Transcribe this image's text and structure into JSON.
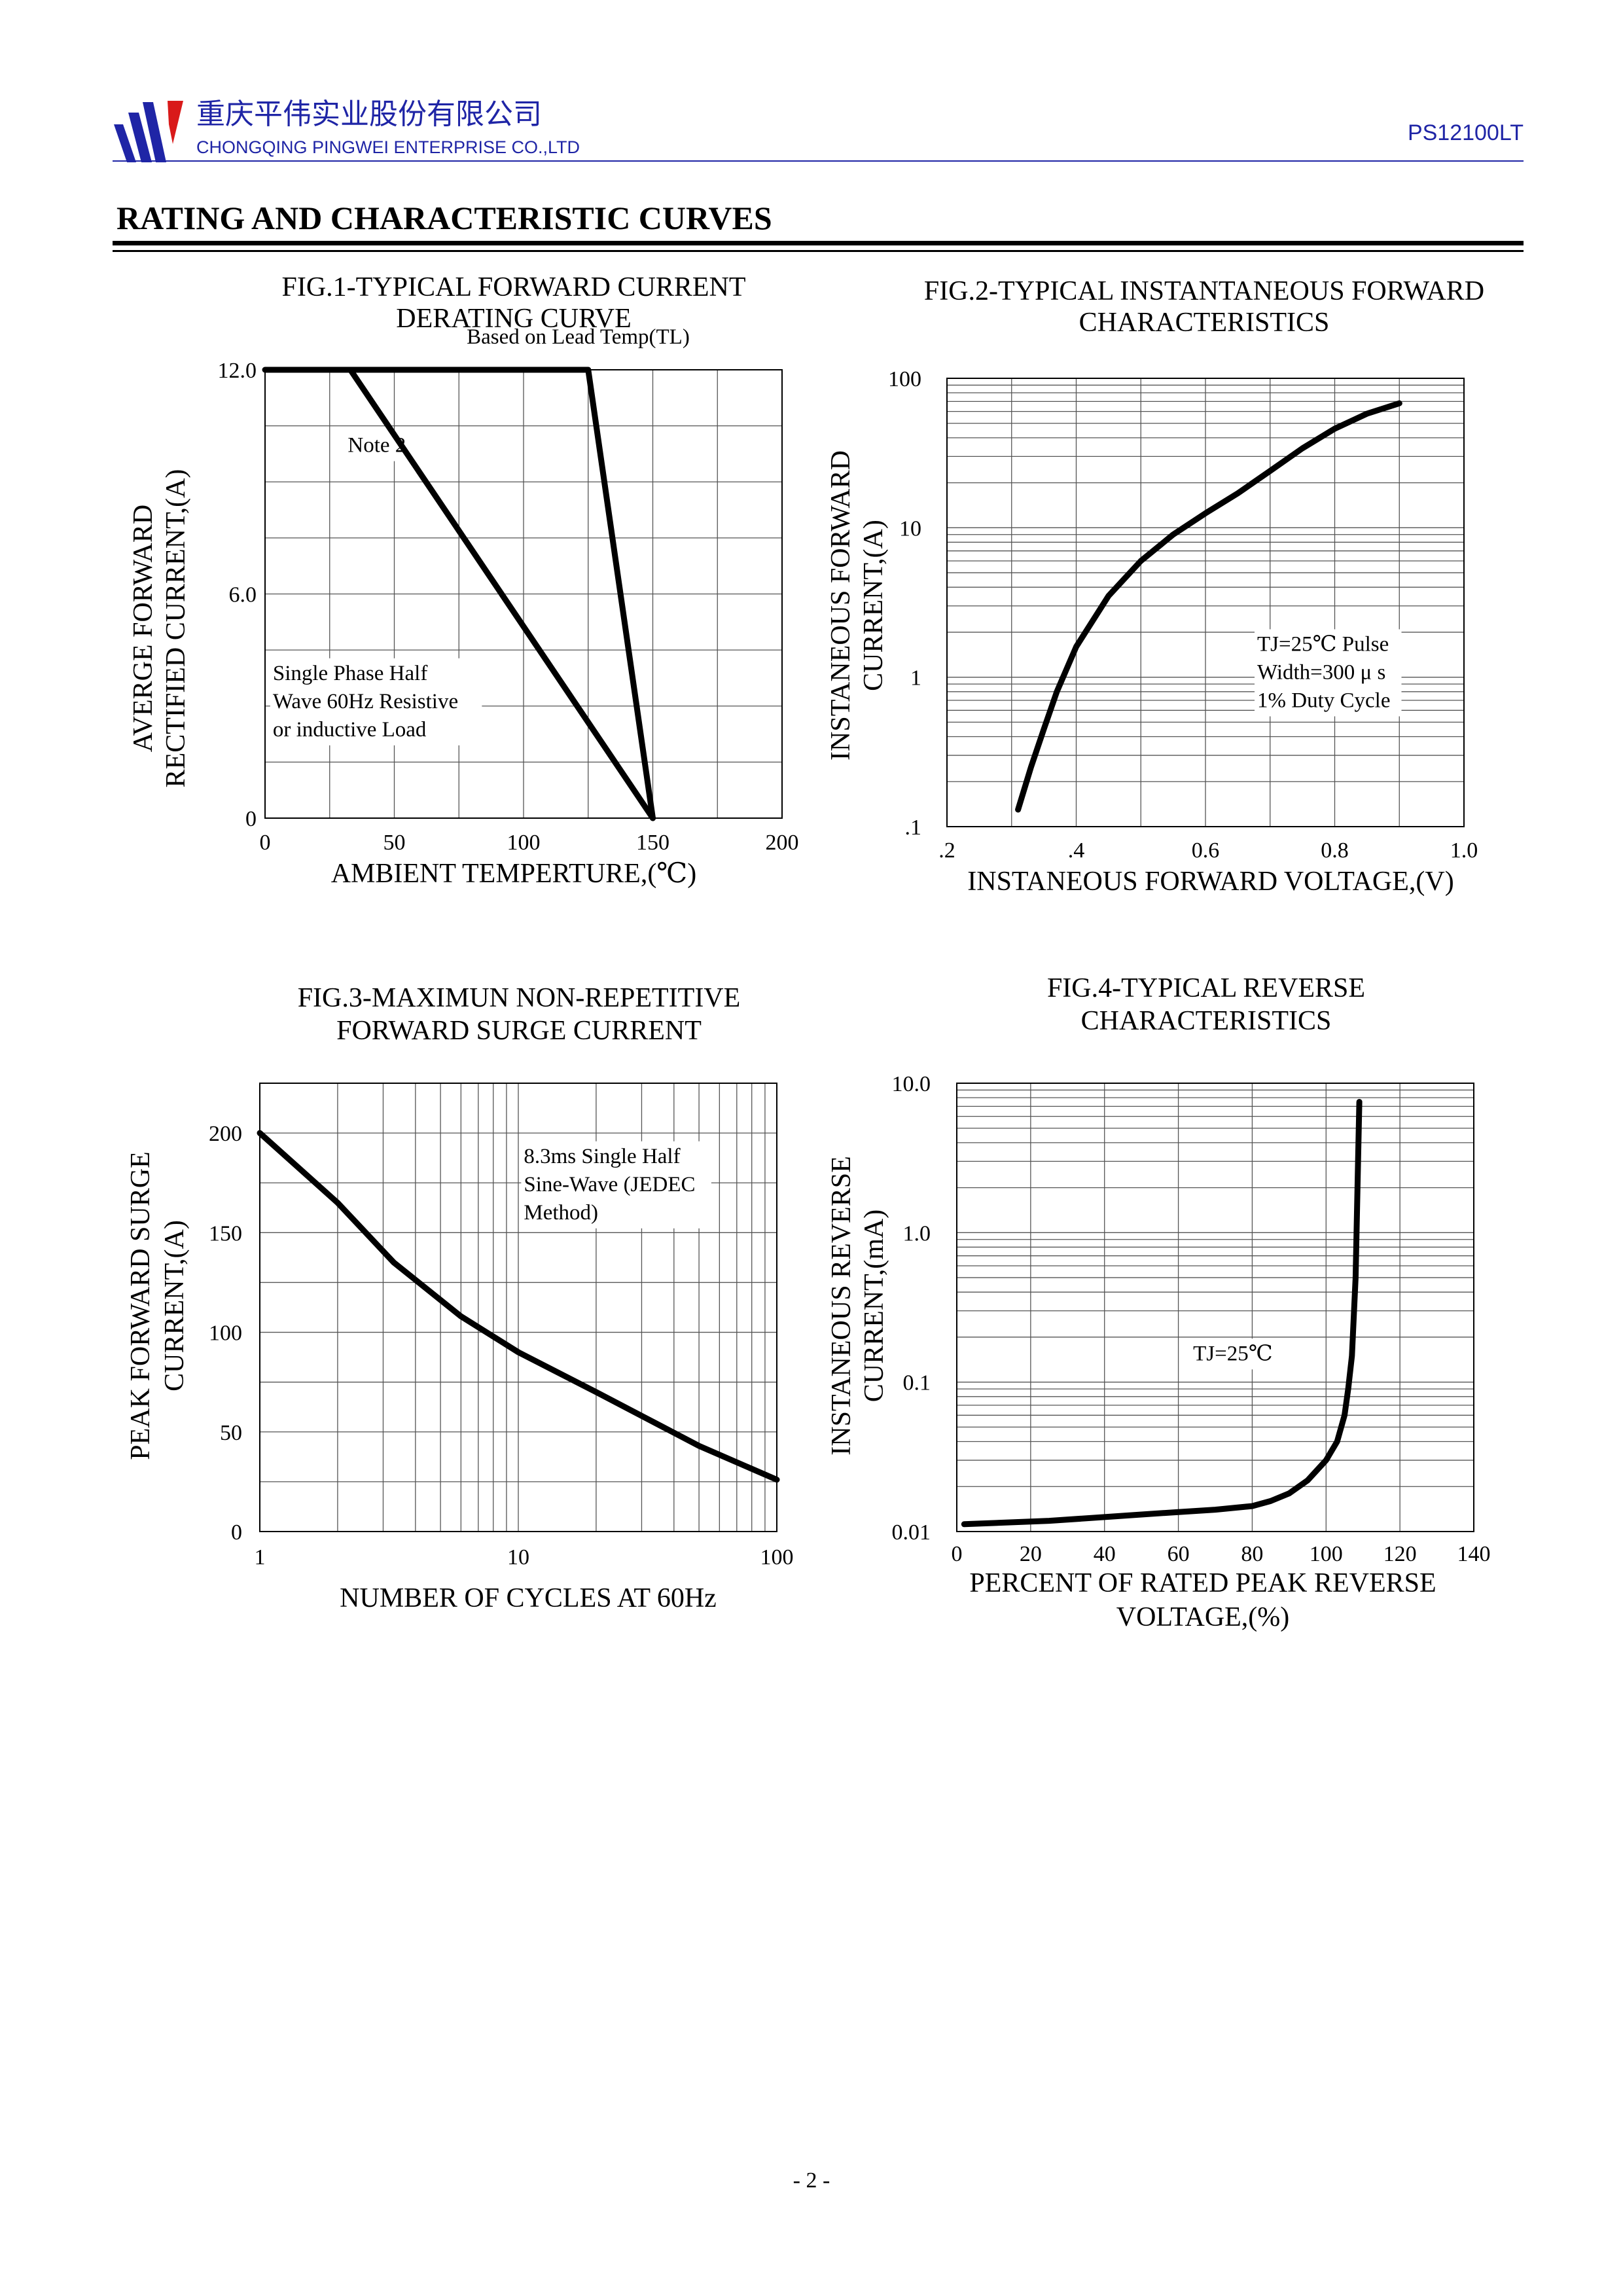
{
  "header": {
    "company_cn": "重庆平伟实业股份有限公司",
    "company_en": "CHONGQING PINGWEI ENTERPRISE CO.,LTD",
    "part_number": "PS12100LT",
    "brand_color": "#1f25a6"
  },
  "section_title": "RATING AND CHARACTERISTIC CURVES",
  "page_number": "- 2 -",
  "chart_data": [
    {
      "id": "fig1",
      "type": "line",
      "title": [
        "FIG.1-TYPICAL FORWARD CURRENT",
        "DERATING CURVE"
      ],
      "xlabel": "AMBIENT TEMPERTURE,(℃)",
      "ylabel": [
        "AVERGE FORWARD",
        "RECTIFIED CURRENT,(A)"
      ],
      "xlim": [
        0,
        200
      ],
      "ylim": [
        0,
        12
      ],
      "x_ticks": [
        {
          "v": 0,
          "label": "0"
        },
        {
          "v": 50,
          "label": "50"
        },
        {
          "v": 100,
          "label": "100"
        },
        {
          "v": 150,
          "label": "150"
        },
        {
          "v": 200,
          "label": "200"
        }
      ],
      "y_ticks": [
        {
          "v": 0,
          "label": "0"
        },
        {
          "v": 6,
          "label": "6.0"
        },
        {
          "v": 12,
          "label": "12.0"
        }
      ],
      "series": [
        {
          "name": "Based on Lead Temp(TL)",
          "x": [
            0,
            125,
            150
          ],
          "y": [
            12,
            12,
            0
          ]
        },
        {
          "name": "Note 2",
          "x": [
            33,
            150
          ],
          "y": [
            12,
            0
          ]
        }
      ],
      "annotations": [
        {
          "lines": [
            "Based on Lead Temp(TL)"
          ],
          "x": 78,
          "y": 12.7
        },
        {
          "lines": [
            "Note 2"
          ],
          "x": 32,
          "y": 9.8
        },
        {
          "lines": [
            "Single Phase Half",
            "Wave 60Hz Resistive",
            "or inductive Load"
          ],
          "x": 3,
          "y": 3.7
        }
      ]
    },
    {
      "id": "fig2",
      "type": "line",
      "title": [
        "FIG.2-TYPICAL INSTANTANEOUS FORWARD",
        "CHARACTERISTICS"
      ],
      "xlabel": "INSTANEOUS FORWARD VOLTAGE,(V)",
      "ylabel": [
        "INSTANEOUS FORWARD",
        "CURRENT,(A)"
      ],
      "xlim": [
        0.2,
        1.0
      ],
      "ylim": [
        0.1,
        100
      ],
      "yscale": "log",
      "x_ticks": [
        {
          "v": 0.2,
          "label": ".2"
        },
        {
          "v": 0.4,
          "label": ".4"
        },
        {
          "v": 0.6,
          "label": "0.6"
        },
        {
          "v": 0.8,
          "label": "0.8"
        },
        {
          "v": 1.0,
          "label": "1.0"
        }
      ],
      "y_ticks": [
        {
          "v": 0.1,
          "label": ".1"
        },
        {
          "v": 1,
          "label": "1"
        },
        {
          "v": 10,
          "label": "10"
        },
        {
          "v": 100,
          "label": "100"
        }
      ],
      "series": [
        {
          "name": "TJ=25℃",
          "x": [
            0.31,
            0.33,
            0.35,
            0.37,
            0.4,
            0.45,
            0.5,
            0.55,
            0.6,
            0.65,
            0.7,
            0.75,
            0.8,
            0.85,
            0.9
          ],
          "y": [
            0.13,
            0.25,
            0.45,
            0.8,
            1.6,
            3.5,
            6.0,
            9.0,
            12.5,
            17,
            24,
            34,
            46,
            58,
            68
          ]
        }
      ],
      "annotations": [
        {
          "lines": [
            "TJ=25℃ Pulse",
            "Width=300 μ s",
            "1% Duty Cycle"
          ],
          "x": 0.68,
          "y": 1.5
        }
      ]
    },
    {
      "id": "fig3",
      "type": "line",
      "title": [
        "FIG.3-MAXIMUN NON-REPETITIVE",
        "FORWARD SURGE CURRENT"
      ],
      "xlabel": "NUMBER OF CYCLES AT 60Hz",
      "ylabel": [
        "PEAK FORWARD SURGE",
        "CURRENT,(A)"
      ],
      "xlim": [
        1,
        100
      ],
      "ylim": [
        0,
        225
      ],
      "xscale": "log",
      "x_ticks": [
        {
          "v": 1,
          "label": "1"
        },
        {
          "v": 10,
          "label": "10"
        },
        {
          "v": 100,
          "label": "100"
        }
      ],
      "y_ticks": [
        {
          "v": 0,
          "label": "0"
        },
        {
          "v": 50,
          "label": "50"
        },
        {
          "v": 100,
          "label": "100"
        },
        {
          "v": 150,
          "label": "150"
        },
        {
          "v": 200,
          "label": "200"
        }
      ],
      "series": [
        {
          "name": "8.3ms Single Half Sine-Wave",
          "x": [
            1,
            2,
            3.3,
            6,
            10,
            20,
            50,
            100
          ],
          "y": [
            200,
            165,
            135,
            108,
            90,
            70,
            43,
            26
          ]
        }
      ],
      "annotations": [
        {
          "lines": [
            "8.3ms Single Half",
            "Sine-Wave (JEDEC",
            "Method)"
          ],
          "x": 10.5,
          "y": 185
        }
      ]
    },
    {
      "id": "fig4",
      "type": "line",
      "title": [
        "FIG.4-TYPICAL REVERSE",
        "CHARACTERISTICS"
      ],
      "xlabel": [
        "PERCENT OF RATED PEAK REVERSE",
        "VOLTAGE,(%)"
      ],
      "ylabel": [
        "INSTANEOUS REVERSE",
        "CURRENT,(mA)"
      ],
      "xlim": [
        0,
        140
      ],
      "ylim": [
        0.01,
        10
      ],
      "yscale": "log",
      "x_ticks": [
        {
          "v": 0,
          "label": "0"
        },
        {
          "v": 20,
          "label": "20"
        },
        {
          "v": 40,
          "label": "40"
        },
        {
          "v": 60,
          "label": "60"
        },
        {
          "v": 80,
          "label": "80"
        },
        {
          "v": 100,
          "label": "100"
        },
        {
          "v": 120,
          "label": "120"
        },
        {
          "v": 140,
          "label": "140"
        }
      ],
      "y_ticks": [
        {
          "v": 0.01,
          "label": "0.01"
        },
        {
          "v": 0.1,
          "label": "0.1"
        },
        {
          "v": 1,
          "label": "1.0"
        },
        {
          "v": 10,
          "label": "10.0"
        }
      ],
      "series": [
        {
          "name": "TJ=25℃",
          "x": [
            2,
            25,
            40,
            50,
            60,
            70,
            80,
            85,
            90,
            95,
            100,
            103,
            105,
            106,
            107,
            108,
            108.5,
            109
          ],
          "y": [
            0.0112,
            0.0118,
            0.0125,
            0.013,
            0.0135,
            0.014,
            0.0148,
            0.016,
            0.018,
            0.022,
            0.03,
            0.04,
            0.06,
            0.09,
            0.15,
            0.5,
            2.0,
            7.5
          ]
        }
      ],
      "annotations": [
        {
          "lines": [
            "TJ=25℃"
          ],
          "x": 64,
          "y": 0.14
        }
      ]
    }
  ]
}
